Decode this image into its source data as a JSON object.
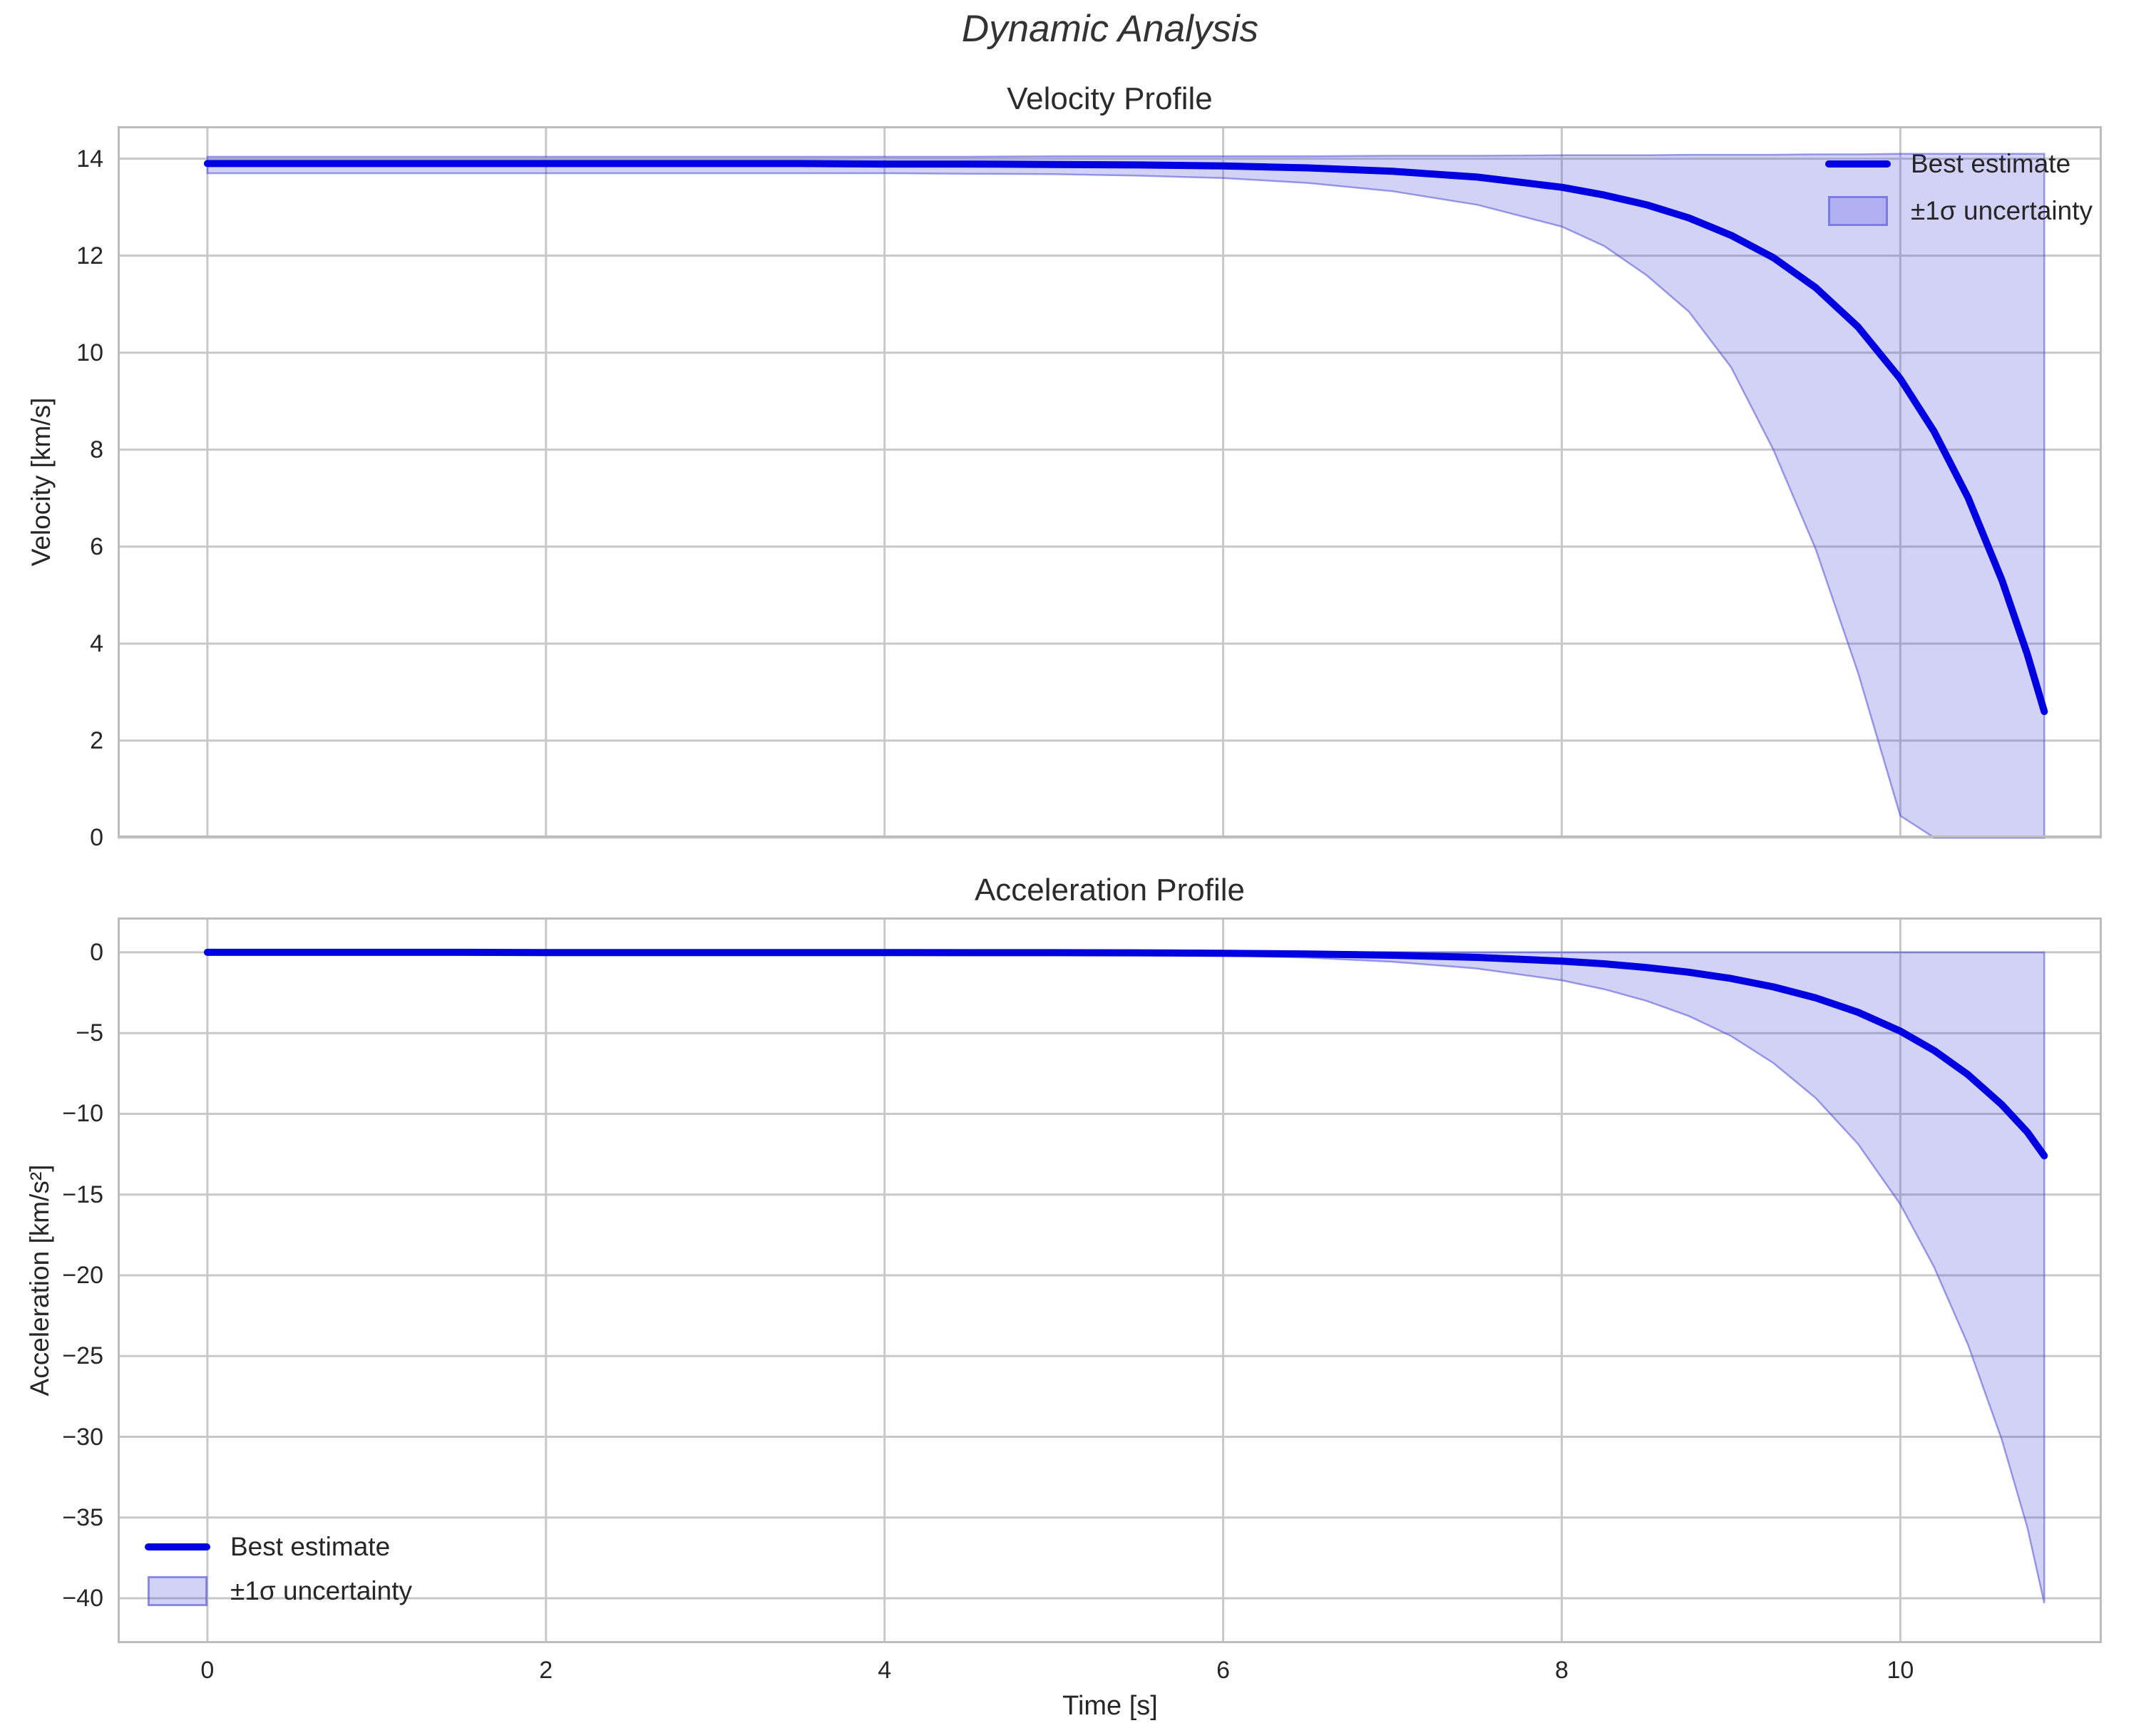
{
  "suptitle": "Dynamic Analysis",
  "colors": {
    "line": "#0000e0",
    "band_fill": "rgba(68,68,221,0.24)",
    "band_edge": "rgba(80,80,215,0.55)",
    "grid": "#c8c8c8",
    "spine": "#bcbcbc",
    "text": "#262626"
  },
  "chart_data": [
    {
      "type": "line",
      "title": "Velocity Profile",
      "ylabel": "Velocity [km/s]",
      "xlabel": "",
      "xlim": [
        -0.53,
        11.19
      ],
      "ylim": [
        0,
        14.67
      ],
      "grid": true,
      "xticks": {
        "values": [
          0,
          2,
          4,
          6,
          8,
          10
        ],
        "labels": [
          "0",
          "2",
          "4",
          "6",
          "8",
          "10"
        ],
        "show_labels": false
      },
      "yticks": {
        "values": [
          0,
          2,
          4,
          6,
          8,
          10,
          12,
          14
        ],
        "labels": [
          "0",
          "2",
          "4",
          "6",
          "8",
          "10",
          "12",
          "14"
        ]
      },
      "legend": {
        "position": "upper-right",
        "entries": [
          {
            "label": "Best estimate",
            "type": "line"
          },
          {
            "label": "±1σ uncertainty",
            "type": "patch"
          }
        ]
      },
      "series": [
        {
          "name": "Best estimate",
          "x": [
            0,
            0.5,
            1,
            1.5,
            2,
            2.5,
            3,
            3.5,
            4,
            4.5,
            5,
            5.5,
            6,
            6.5,
            7,
            7.5,
            8,
            8.25,
            8.5,
            8.75,
            9,
            9.25,
            9.5,
            9.75,
            10,
            10.2,
            10.4,
            10.6,
            10.75,
            10.85
          ],
          "y": [
            13.9,
            13.9,
            13.9,
            13.9,
            13.9,
            13.9,
            13.9,
            13.9,
            13.89,
            13.89,
            13.88,
            13.87,
            13.85,
            13.81,
            13.74,
            13.62,
            13.41,
            13.25,
            13.05,
            12.78,
            12.42,
            11.96,
            11.34,
            10.53,
            9.46,
            8.37,
            7.01,
            5.31,
            3.78,
            2.6
          ]
        },
        {
          "name": "±1σ uncertainty",
          "x": [
            0,
            0.5,
            1,
            1.5,
            2,
            2.5,
            3,
            3.5,
            4,
            4.5,
            5,
            5.5,
            6,
            6.5,
            7,
            7.5,
            8,
            8.25,
            8.5,
            8.75,
            9,
            9.25,
            9.5,
            9.75,
            10,
            10.2,
            10.4,
            10.6,
            10.75,
            10.85
          ],
          "y_upper": [
            14.04,
            14.04,
            14.04,
            14.04,
            14.04,
            14.04,
            14.04,
            14.04,
            14.04,
            14.04,
            14.05,
            14.05,
            14.05,
            14.05,
            14.06,
            14.06,
            14.07,
            14.07,
            14.07,
            14.08,
            14.08,
            14.08,
            14.09,
            14.09,
            14.1,
            14.1,
            14.1,
            14.1,
            14.1,
            14.1
          ],
          "y_lower": [
            13.7,
            13.7,
            13.7,
            13.7,
            13.7,
            13.7,
            13.7,
            13.7,
            13.7,
            13.69,
            13.68,
            13.65,
            13.6,
            13.5,
            13.33,
            13.05,
            12.6,
            12.2,
            11.6,
            10.85,
            9.7,
            8.0,
            5.95,
            3.4,
            0.45,
            0,
            0,
            0,
            0,
            0
          ]
        }
      ]
    },
    {
      "type": "line",
      "title": "Acceleration Profile",
      "ylabel": "Acceleration [km/s²]",
      "xlabel": "Time [s]",
      "xlim": [
        -0.53,
        11.19
      ],
      "ylim": [
        -42.78,
        2.16
      ],
      "grid": true,
      "xticks": {
        "values": [
          0,
          2,
          4,
          6,
          8,
          10
        ],
        "labels": [
          "0",
          "2",
          "4",
          "6",
          "8",
          "10"
        ],
        "show_labels": true
      },
      "yticks": {
        "values": [
          0,
          -5,
          -10,
          -15,
          -20,
          -25,
          -30,
          -35,
          -40
        ],
        "labels": [
          "0",
          "−5",
          "−10",
          "−15",
          "−20",
          "−25",
          "−30",
          "−35",
          "−40"
        ]
      },
      "legend": {
        "position": "lower-left",
        "entries": [
          {
            "label": "Best estimate",
            "type": "line"
          },
          {
            "label": "±1σ uncertainty",
            "type": "patch"
          }
        ]
      },
      "series": [
        {
          "name": "Best estimate",
          "x": [
            0,
            0.5,
            1,
            1.5,
            2,
            2.5,
            3,
            3.5,
            4,
            4.5,
            5,
            5.5,
            6,
            6.5,
            7,
            7.5,
            8,
            8.25,
            8.5,
            8.75,
            9,
            9.25,
            9.5,
            9.75,
            10,
            10.2,
            10.4,
            10.6,
            10.75,
            10.85
          ],
          "y": [
            0,
            0,
            0,
            0,
            -0.01,
            -0.01,
            -0.01,
            -0.01,
            -0.01,
            -0.02,
            -0.02,
            -0.03,
            -0.06,
            -0.1,
            -0.18,
            -0.31,
            -0.54,
            -0.71,
            -0.94,
            -1.23,
            -1.62,
            -2.14,
            -2.82,
            -3.71,
            -4.88,
            -6.08,
            -7.58,
            -9.44,
            -11.13,
            -12.6
          ]
        },
        {
          "name": "±1σ uncertainty",
          "x": [
            0,
            0.5,
            1,
            1.5,
            2,
            2.5,
            3,
            3.5,
            4,
            4.5,
            5,
            5.5,
            6,
            6.5,
            7,
            7.5,
            8,
            8.25,
            8.5,
            8.75,
            9,
            9.25,
            9.5,
            9.75,
            10,
            10.2,
            10.4,
            10.6,
            10.75,
            10.85
          ],
          "y_upper": [
            0,
            0,
            0,
            0,
            0,
            0,
            0,
            0,
            0,
            0,
            0,
            0,
            0,
            0,
            0,
            0,
            0,
            0,
            0,
            0,
            0,
            0,
            0,
            0,
            0,
            0,
            0,
            0,
            0,
            0
          ],
          "y_lower": [
            0,
            0,
            0,
            0,
            -0.02,
            -0.02,
            -0.03,
            -0.04,
            -0.05,
            -0.07,
            -0.08,
            -0.12,
            -0.19,
            -0.33,
            -0.58,
            -1.0,
            -1.73,
            -2.28,
            -3.0,
            -3.94,
            -5.18,
            -6.85,
            -9.02,
            -11.87,
            -15.6,
            -19.5,
            -24.3,
            -30.2,
            -35.6,
            -40.3
          ]
        }
      ]
    }
  ]
}
